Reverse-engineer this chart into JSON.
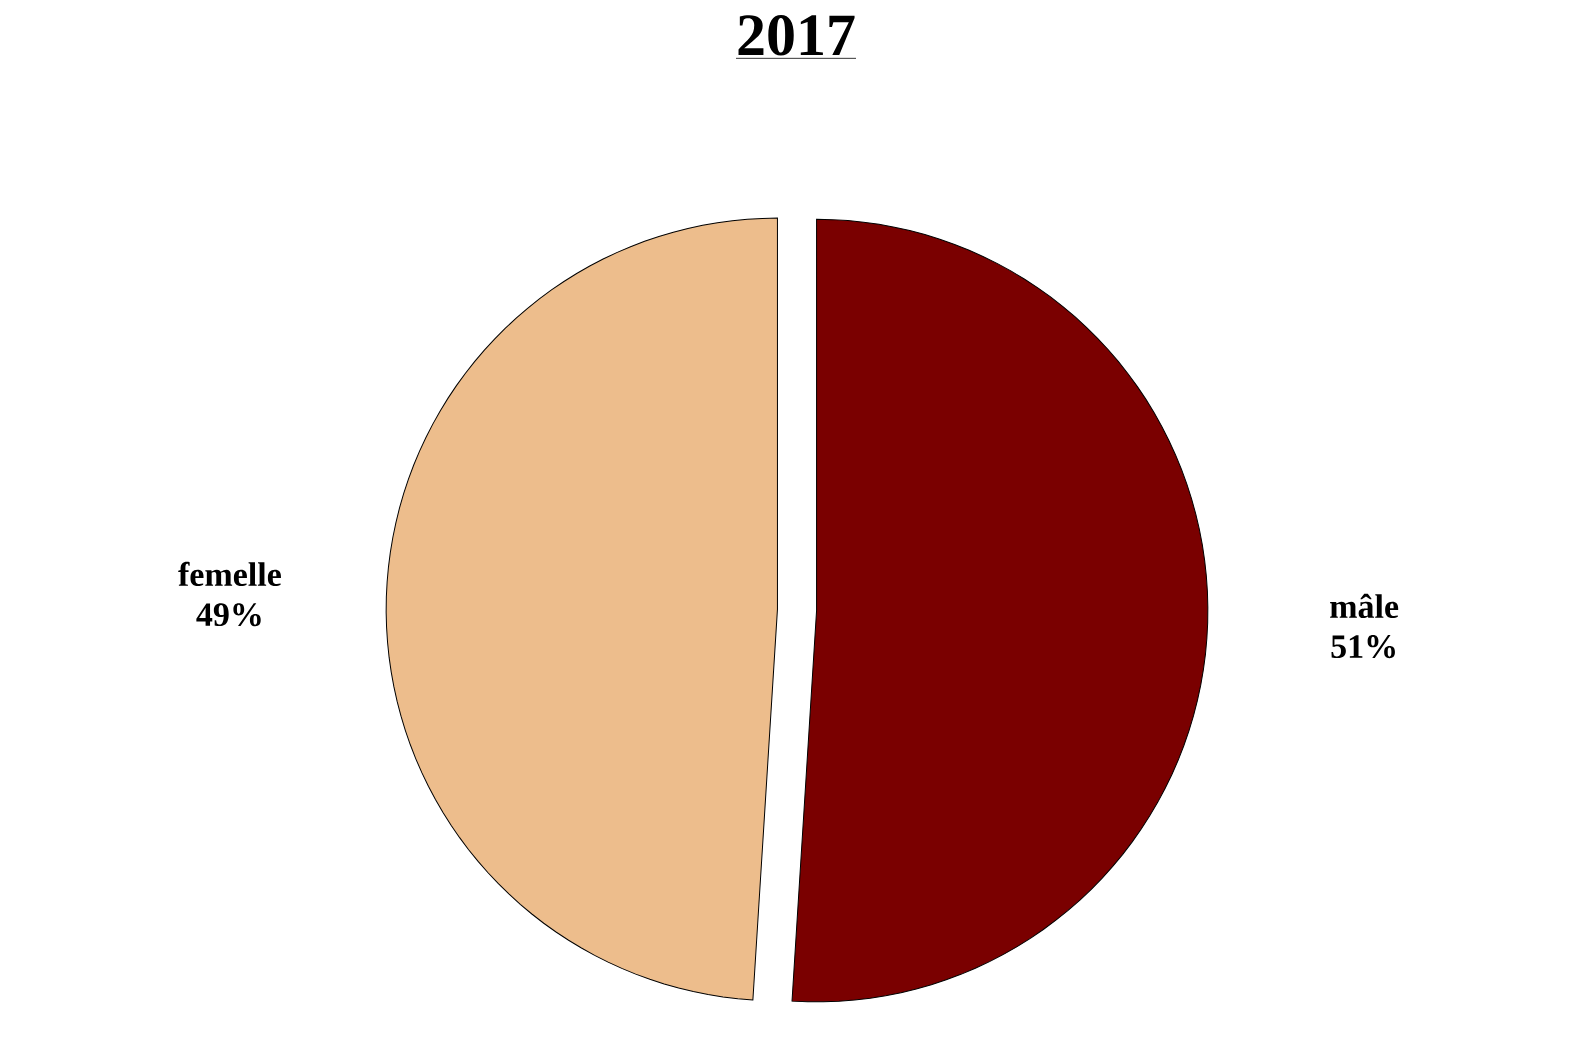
{
  "chart_data": {
    "type": "pie",
    "title": "2017",
    "categories": [
      "mâle",
      "femelle"
    ],
    "values": [
      51,
      49
    ],
    "value_labels": [
      "51%",
      "49%"
    ],
    "colors": [
      "#7a0000",
      "#edbd8c"
    ]
  }
}
